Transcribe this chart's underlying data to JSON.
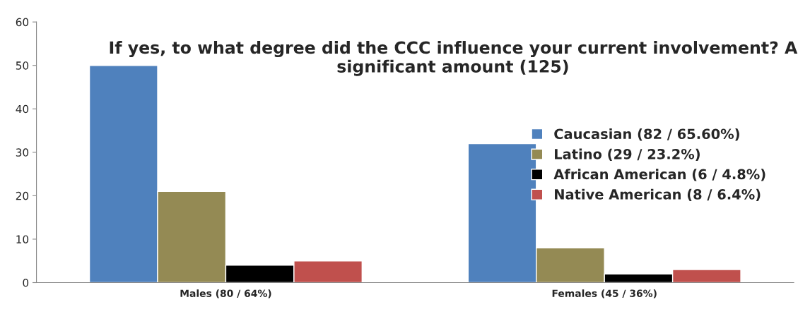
{
  "chart_data": {
    "type": "bar",
    "title": "If yes, to what degree did the CCC influence your current involvement? A significant amount (125)",
    "categories": [
      "Males (80 / 64%)",
      "Females (45 / 36%)"
    ],
    "series": [
      {
        "name": "Caucasian (82 / 65.60%)",
        "color": "#4f81bd",
        "values": [
          50,
          32
        ]
      },
      {
        "name": "Latino (29 / 23.2%)",
        "color": "#948a54",
        "values": [
          21,
          8
        ]
      },
      {
        "name": "African American (6 / 4.8%)",
        "color": "#000000",
        "values": [
          4,
          2
        ]
      },
      {
        "name": "Native American (8 / 6.4%)",
        "color": "#c0504d",
        "values": [
          5,
          3
        ]
      }
    ],
    "ylim": [
      0,
      60
    ],
    "yticks": [
      0,
      10,
      20,
      30,
      40,
      50,
      60
    ],
    "grid": false,
    "legend": "right"
  }
}
